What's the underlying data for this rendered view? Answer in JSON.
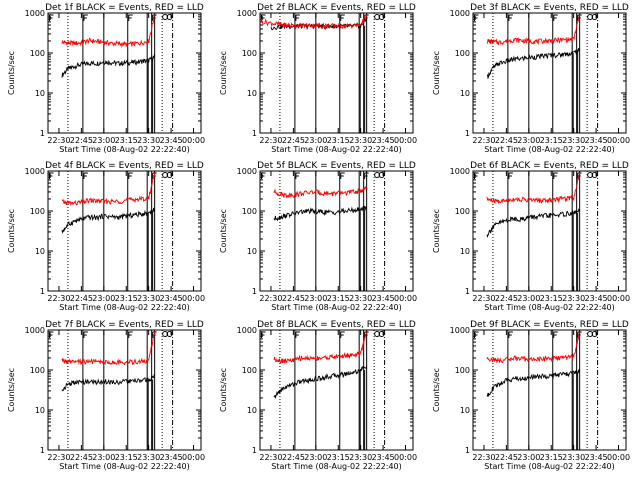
{
  "figure": {
    "xlabel": "Start Time (08-Aug-02 22:22:40)",
    "ylabel": "Counts/sec"
  },
  "chart_data": [
    {
      "type": "line",
      "title": "Det 1f BLACK = Events, RED = LLD",
      "xlabel": "Start Time (08-Aug-02 22:22:40)",
      "ylabel": "Counts/sec",
      "yscale": "log",
      "ylim": [
        1,
        1000
      ],
      "yticks": [
        "1",
        "10",
        "100",
        "1000"
      ],
      "xticks": [
        "22:30",
        "22:45",
        "23:00",
        "23:15",
        "23:30",
        "23:45",
        "00:00"
      ],
      "x": [
        "22:32",
        "22:36",
        "22:40",
        "22:45",
        "22:50",
        "22:55",
        "23:00",
        "23:05",
        "23:10",
        "23:15",
        "23:20",
        "23:25",
        "23:30",
        "23:34"
      ],
      "series": [
        {
          "name": "Events",
          "color": "#000000",
          "values": [
            28,
            40,
            46,
            52,
            56,
            55,
            60,
            58,
            55,
            57,
            58,
            62,
            65,
            80
          ]
        },
        {
          "name": "LLD",
          "color": "#ff0000",
          "values": [
            185,
            180,
            175,
            180,
            205,
            195,
            185,
            175,
            170,
            165,
            170,
            180,
            200,
            900
          ]
        }
      ]
    },
    {
      "type": "line",
      "title": "Det 2f BLACK = Events, RED = LLD",
      "xlabel": "Start Time (08-Aug-02 22:22:40)",
      "ylabel": "Counts/sec",
      "yscale": "log",
      "ylim": [
        1,
        1000
      ],
      "yticks": [
        "1",
        "10",
        "100",
        "1000"
      ],
      "xticks": [
        "22:30",
        "22:45",
        "23:00",
        "23:15",
        "23:30",
        "23:45",
        "00:00"
      ],
      "x": [
        "22:23",
        "22:30",
        "22:36",
        "22:40",
        "22:45",
        "22:50",
        "22:55",
        "23:00",
        "23:05",
        "23:10",
        "23:15",
        "23:20",
        "23:25",
        "23:30",
        "23:34"
      ],
      "series": [
        {
          "name": "Events",
          "color": "#000000",
          "values": [
            null,
            430,
            460,
            470,
            470,
            470,
            475,
            470,
            470,
            470,
            470,
            465,
            470,
            480,
            700
          ]
        },
        {
          "name": "LLD",
          "color": "#ff0000",
          "values": [
            620,
            560,
            520,
            490,
            490,
            485,
            490,
            490,
            485,
            480,
            480,
            480,
            485,
            500,
            900
          ]
        }
      ]
    },
    {
      "type": "line",
      "title": "Det 3f BLACK = Events, RED = LLD",
      "xlabel": "Start Time (08-Aug-02 22:22:40)",
      "ylabel": "Counts/sec",
      "yscale": "log",
      "ylim": [
        1,
        1000
      ],
      "yticks": [
        "1",
        "10",
        "100",
        "1000"
      ],
      "xticks": [
        "22:30",
        "22:45",
        "23:00",
        "23:15",
        "23:30",
        "23:45",
        "00:00"
      ],
      "x": [
        "22:32",
        "22:36",
        "22:40",
        "22:45",
        "22:50",
        "22:55",
        "23:00",
        "23:05",
        "23:10",
        "23:15",
        "23:20",
        "23:25",
        "23:30",
        "23:34"
      ],
      "series": [
        {
          "name": "Events",
          "color": "#000000",
          "values": [
            25,
            42,
            55,
            62,
            70,
            72,
            78,
            80,
            85,
            88,
            90,
            95,
            100,
            120
          ]
        },
        {
          "name": "LLD",
          "color": "#ff0000",
          "values": [
            200,
            190,
            185,
            195,
            215,
            205,
            200,
            195,
            200,
            205,
            210,
            215,
            220,
            900
          ]
        }
      ]
    },
    {
      "type": "line",
      "title": "Det 4f BLACK = Events, RED = LLD",
      "xlabel": "Start Time (08-Aug-02 22:22:40)",
      "ylabel": "Counts/sec",
      "yscale": "log",
      "ylim": [
        1,
        1000
      ],
      "yticks": [
        "1",
        "10",
        "100",
        "1000"
      ],
      "xticks": [
        "22:30",
        "22:45",
        "23:00",
        "23:15",
        "23:30",
        "23:45",
        "00:00"
      ],
      "x": [
        "22:32",
        "22:36",
        "22:40",
        "22:45",
        "22:50",
        "22:55",
        "23:00",
        "23:05",
        "23:10",
        "23:15",
        "23:20",
        "23:25",
        "23:30",
        "23:34"
      ],
      "series": [
        {
          "name": "Events",
          "color": "#000000",
          "values": [
            30,
            45,
            55,
            62,
            70,
            68,
            75,
            72,
            70,
            75,
            80,
            85,
            90,
            110
          ]
        },
        {
          "name": "LLD",
          "color": "#ff0000",
          "values": [
            170,
            160,
            155,
            165,
            185,
            180,
            175,
            170,
            175,
            185,
            195,
            200,
            210,
            900
          ]
        }
      ]
    },
    {
      "type": "line",
      "title": "Det 5f BLACK = Events, RED = LLD",
      "xlabel": "Start Time (08-Aug-02 22:22:40)",
      "ylabel": "Counts/sec",
      "yscale": "log",
      "ylim": [
        1,
        1000
      ],
      "yticks": [
        "1",
        "10",
        "100",
        "1000"
      ],
      "xticks": [
        "22:30",
        "22:45",
        "23:00",
        "23:15",
        "23:30",
        "23:45",
        "00:00"
      ],
      "x": [
        "22:32",
        "22:36",
        "22:40",
        "22:45",
        "22:50",
        "22:55",
        "23:00",
        "23:05",
        "23:10",
        "23:15",
        "23:20",
        "23:25",
        "23:30",
        "23:34"
      ],
      "series": [
        {
          "name": "Events",
          "color": "#000000",
          "values": [
            65,
            70,
            78,
            85,
            95,
            100,
            98,
            95,
            92,
            95,
            100,
            105,
            110,
            130
          ]
        },
        {
          "name": "LLD",
          "color": "#ff0000",
          "values": [
            300,
            270,
            250,
            255,
            275,
            290,
            300,
            280,
            275,
            280,
            290,
            300,
            320,
            380
          ]
        }
      ]
    },
    {
      "type": "line",
      "title": "Det 6f BLACK = Events, RED = LLD",
      "xlabel": "Start Time (08-Aug-02 22:22:40)",
      "ylabel": "Counts/sec",
      "yscale": "log",
      "ylim": [
        1,
        1000
      ],
      "yticks": [
        "1",
        "10",
        "100",
        "1000"
      ],
      "xticks": [
        "22:30",
        "22:45",
        "23:00",
        "23:15",
        "23:30",
        "23:45",
        "00:00"
      ],
      "x": [
        "22:32",
        "22:36",
        "22:40",
        "22:45",
        "22:50",
        "22:55",
        "23:00",
        "23:05",
        "23:10",
        "23:15",
        "23:20",
        "23:25",
        "23:30",
        "23:34"
      ],
      "series": [
        {
          "name": "Events",
          "color": "#000000",
          "values": [
            25,
            40,
            50,
            58,
            65,
            62,
            70,
            72,
            75,
            78,
            80,
            85,
            90,
            100
          ]
        },
        {
          "name": "LLD",
          "color": "#ff0000",
          "values": [
            200,
            180,
            175,
            180,
            200,
            195,
            190,
            185,
            185,
            190,
            200,
            210,
            215,
            900
          ]
        }
      ]
    },
    {
      "type": "line",
      "title": "Det 7f BLACK = Events, RED = LLD",
      "xlabel": "Start Time (08-Aug-02 22:22:40)",
      "ylabel": "Counts/sec",
      "yscale": "log",
      "ylim": [
        1,
        1000
      ],
      "yticks": [
        "1",
        "10",
        "100",
        "1000"
      ],
      "xticks": [
        "22:30",
        "22:45",
        "23:00",
        "23:15",
        "23:30",
        "23:45",
        "00:00"
      ],
      "x": [
        "22:32",
        "22:36",
        "22:40",
        "22:45",
        "22:50",
        "22:55",
        "23:00",
        "23:05",
        "23:10",
        "23:15",
        "23:20",
        "23:25",
        "23:30",
        "23:34"
      ],
      "series": [
        {
          "name": "Events",
          "color": "#000000",
          "values": [
            30,
            45,
            48,
            50,
            52,
            50,
            52,
            50,
            50,
            52,
            52,
            55,
            58,
            70
          ]
        },
        {
          "name": "LLD",
          "color": "#ff0000",
          "values": [
            175,
            160,
            155,
            160,
            165,
            160,
            160,
            155,
            155,
            158,
            160,
            165,
            170,
            900
          ]
        }
      ]
    },
    {
      "type": "line",
      "title": "Det 8f BLACK = Events, RED = LLD",
      "xlabel": "Start Time (08-Aug-02 22:22:40)",
      "ylabel": "Counts/sec",
      "yscale": "log",
      "ylim": [
        1,
        1000
      ],
      "yticks": [
        "1",
        "10",
        "100",
        "1000"
      ],
      "xticks": [
        "22:30",
        "22:45",
        "23:00",
        "23:15",
        "23:30",
        "23:45",
        "00:00"
      ],
      "x": [
        "22:32",
        "22:36",
        "22:40",
        "22:45",
        "22:50",
        "22:55",
        "23:00",
        "23:05",
        "23:10",
        "23:15",
        "23:20",
        "23:25",
        "23:30",
        "23:34"
      ],
      "series": [
        {
          "name": "Events",
          "color": "#000000",
          "values": [
            20,
            30,
            38,
            45,
            52,
            55,
            60,
            65,
            70,
            75,
            80,
            88,
            100,
            130
          ]
        },
        {
          "name": "LLD",
          "color": "#ff0000",
          "values": [
            190,
            175,
            170,
            175,
            200,
            195,
            200,
            205,
            210,
            220,
            230,
            240,
            260,
            900
          ]
        }
      ]
    },
    {
      "type": "line",
      "title": "Det 9f BLACK = Events, RED = LLD",
      "xlabel": "Start Time (08-Aug-02 22:22:40)",
      "ylabel": "Counts/sec",
      "yscale": "log",
      "ylim": [
        1,
        1000
      ],
      "yticks": [
        "1",
        "10",
        "100",
        "1000"
      ],
      "xticks": [
        "22:30",
        "22:45",
        "23:00",
        "23:15",
        "23:30",
        "23:45",
        "00:00"
      ],
      "x": [
        "22:32",
        "22:36",
        "22:40",
        "22:45",
        "22:50",
        "22:55",
        "23:00",
        "23:05",
        "23:10",
        "23:15",
        "23:20",
        "23:25",
        "23:30",
        "23:34"
      ],
      "series": [
        {
          "name": "Events",
          "color": "#000000",
          "values": [
            22,
            35,
            45,
            55,
            62,
            60,
            65,
            68,
            70,
            72,
            75,
            80,
            85,
            95
          ]
        },
        {
          "name": "LLD",
          "color": "#ff0000",
          "values": [
            200,
            180,
            175,
            180,
            200,
            190,
            185,
            185,
            190,
            195,
            200,
            205,
            215,
            900
          ]
        }
      ]
    }
  ]
}
